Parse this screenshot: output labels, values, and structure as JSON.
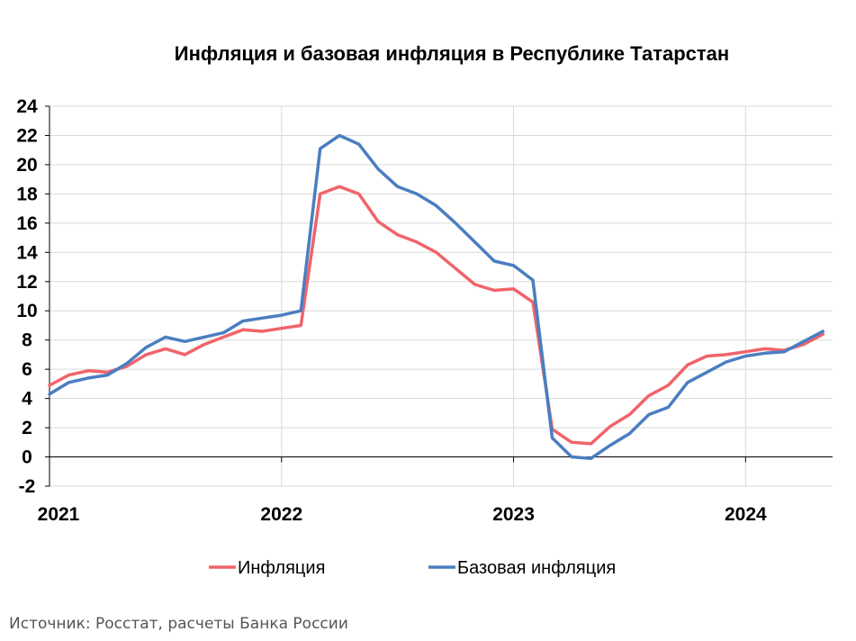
{
  "chart_data": {
    "type": "line",
    "title": "Инфляция и базовая инфляция в Республике Татарстан",
    "xlabel": "",
    "ylabel": "",
    "ylim": [
      -2,
      24
    ],
    "yticks": [
      -2,
      0,
      2,
      4,
      6,
      8,
      10,
      12,
      14,
      16,
      18,
      20,
      22,
      24
    ],
    "x_tick_labels": [
      "2021",
      "2022",
      "2023",
      "2024"
    ],
    "x_tick_positions": [
      0,
      12,
      24,
      36
    ],
    "x_range": [
      0,
      40.5
    ],
    "grid": true,
    "legend_placement": "bottom",
    "series": [
      {
        "name": "Инфляция",
        "color": "#f0646a",
        "x": [
          0,
          1,
          2,
          3,
          4,
          5,
          6,
          7,
          8,
          9,
          10,
          11,
          12,
          13,
          14,
          15,
          16,
          17,
          18,
          19,
          20,
          21,
          22,
          23,
          24,
          25,
          26,
          27,
          28,
          29,
          30,
          31,
          32,
          33,
          34,
          35,
          36,
          37,
          38,
          39,
          40
        ],
        "values": [
          4.9,
          5.6,
          5.9,
          5.8,
          6.2,
          7.0,
          7.4,
          7.0,
          7.7,
          8.2,
          8.7,
          8.6,
          8.8,
          9.0,
          18.0,
          18.5,
          18.0,
          16.1,
          15.2,
          14.7,
          14.0,
          12.9,
          11.8,
          11.4,
          11.5,
          10.6,
          1.9,
          1.0,
          0.9,
          2.1,
          2.9,
          4.2,
          4.9,
          6.3,
          6.9,
          7.0,
          7.2,
          7.4,
          7.3,
          7.7,
          8.4
        ]
      },
      {
        "name": "Базовая инфляция",
        "color": "#4a7ec0",
        "x": [
          0,
          1,
          2,
          3,
          4,
          5,
          6,
          7,
          8,
          9,
          10,
          11,
          12,
          13,
          14,
          15,
          16,
          17,
          18,
          19,
          20,
          21,
          22,
          23,
          24,
          25,
          26,
          27,
          28,
          29,
          30,
          31,
          32,
          33,
          34,
          35,
          36,
          37,
          38,
          39,
          40
        ],
        "values": [
          4.3,
          5.1,
          5.4,
          5.6,
          6.4,
          7.5,
          8.2,
          7.9,
          8.2,
          8.5,
          9.3,
          9.5,
          9.7,
          10.0,
          21.1,
          22.0,
          21.4,
          19.7,
          18.5,
          18.0,
          17.2,
          16.0,
          14.7,
          13.4,
          13.1,
          12.1,
          1.3,
          0.0,
          -0.1,
          0.8,
          1.6,
          2.9,
          3.4,
          5.1,
          5.8,
          6.5,
          6.9,
          7.1,
          7.2,
          7.9,
          8.6
        ]
      }
    ]
  },
  "source_text": "Источник: Росстат, расчеты Банка России"
}
